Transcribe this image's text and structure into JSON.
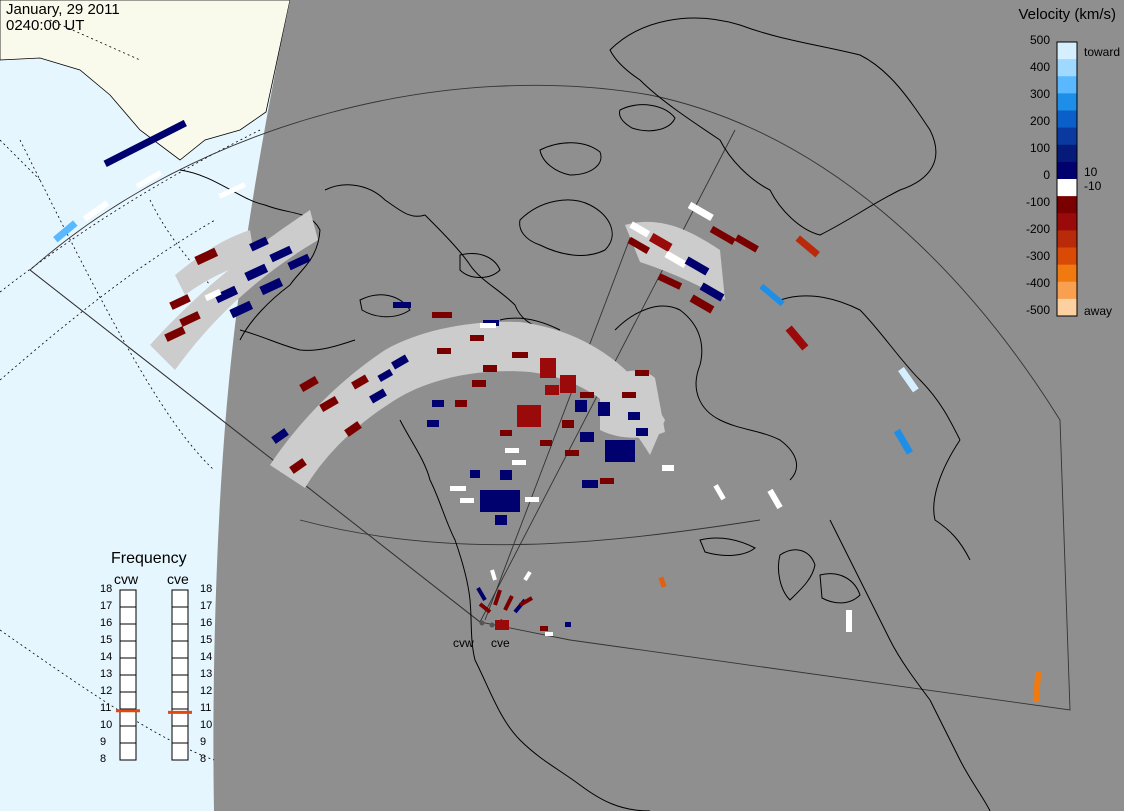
{
  "title": {
    "date": "January, 29 2011",
    "time": "0240:00 UT"
  },
  "colorbar": {
    "title": "Velocity (km/s)",
    "ticks": [
      "500",
      "400",
      "300",
      "200",
      "100",
      "10",
      "0",
      "-10",
      "-100",
      "-200",
      "-300",
      "-400",
      "-500"
    ],
    "toward_label": "toward",
    "away_label": "away",
    "colors": [
      "#d6efff",
      "#9fd9ff",
      "#5ab8ff",
      "#1e8fe8",
      "#0a5fc8",
      "#0a3aa0",
      "#061a7a",
      "#00006e",
      "#ffffff",
      "#7a0000",
      "#9a0a0a",
      "#b82a0a",
      "#d84a06",
      "#f07a10",
      "#f8a050",
      "#fcd0a0"
    ]
  },
  "frequency": {
    "title": "Frequency",
    "radars": [
      {
        "name": "cvw",
        "value_mhz": 10.9
      },
      {
        "name": "cve",
        "value_mhz": 10.8
      }
    ],
    "ticks": [
      "18",
      "17",
      "16",
      "15",
      "14",
      "13",
      "12",
      "11",
      "10",
      "9",
      "8"
    ],
    "marker_color": "#e04a10"
  },
  "radars": [
    {
      "name": "cvw"
    },
    {
      "name": "cve"
    }
  ],
  "map_colors": {
    "night": "#8f8f8f",
    "day_ocean": "#e6f6ff",
    "day_land": "#fafaec",
    "ground_scatter": "#cccccc"
  }
}
